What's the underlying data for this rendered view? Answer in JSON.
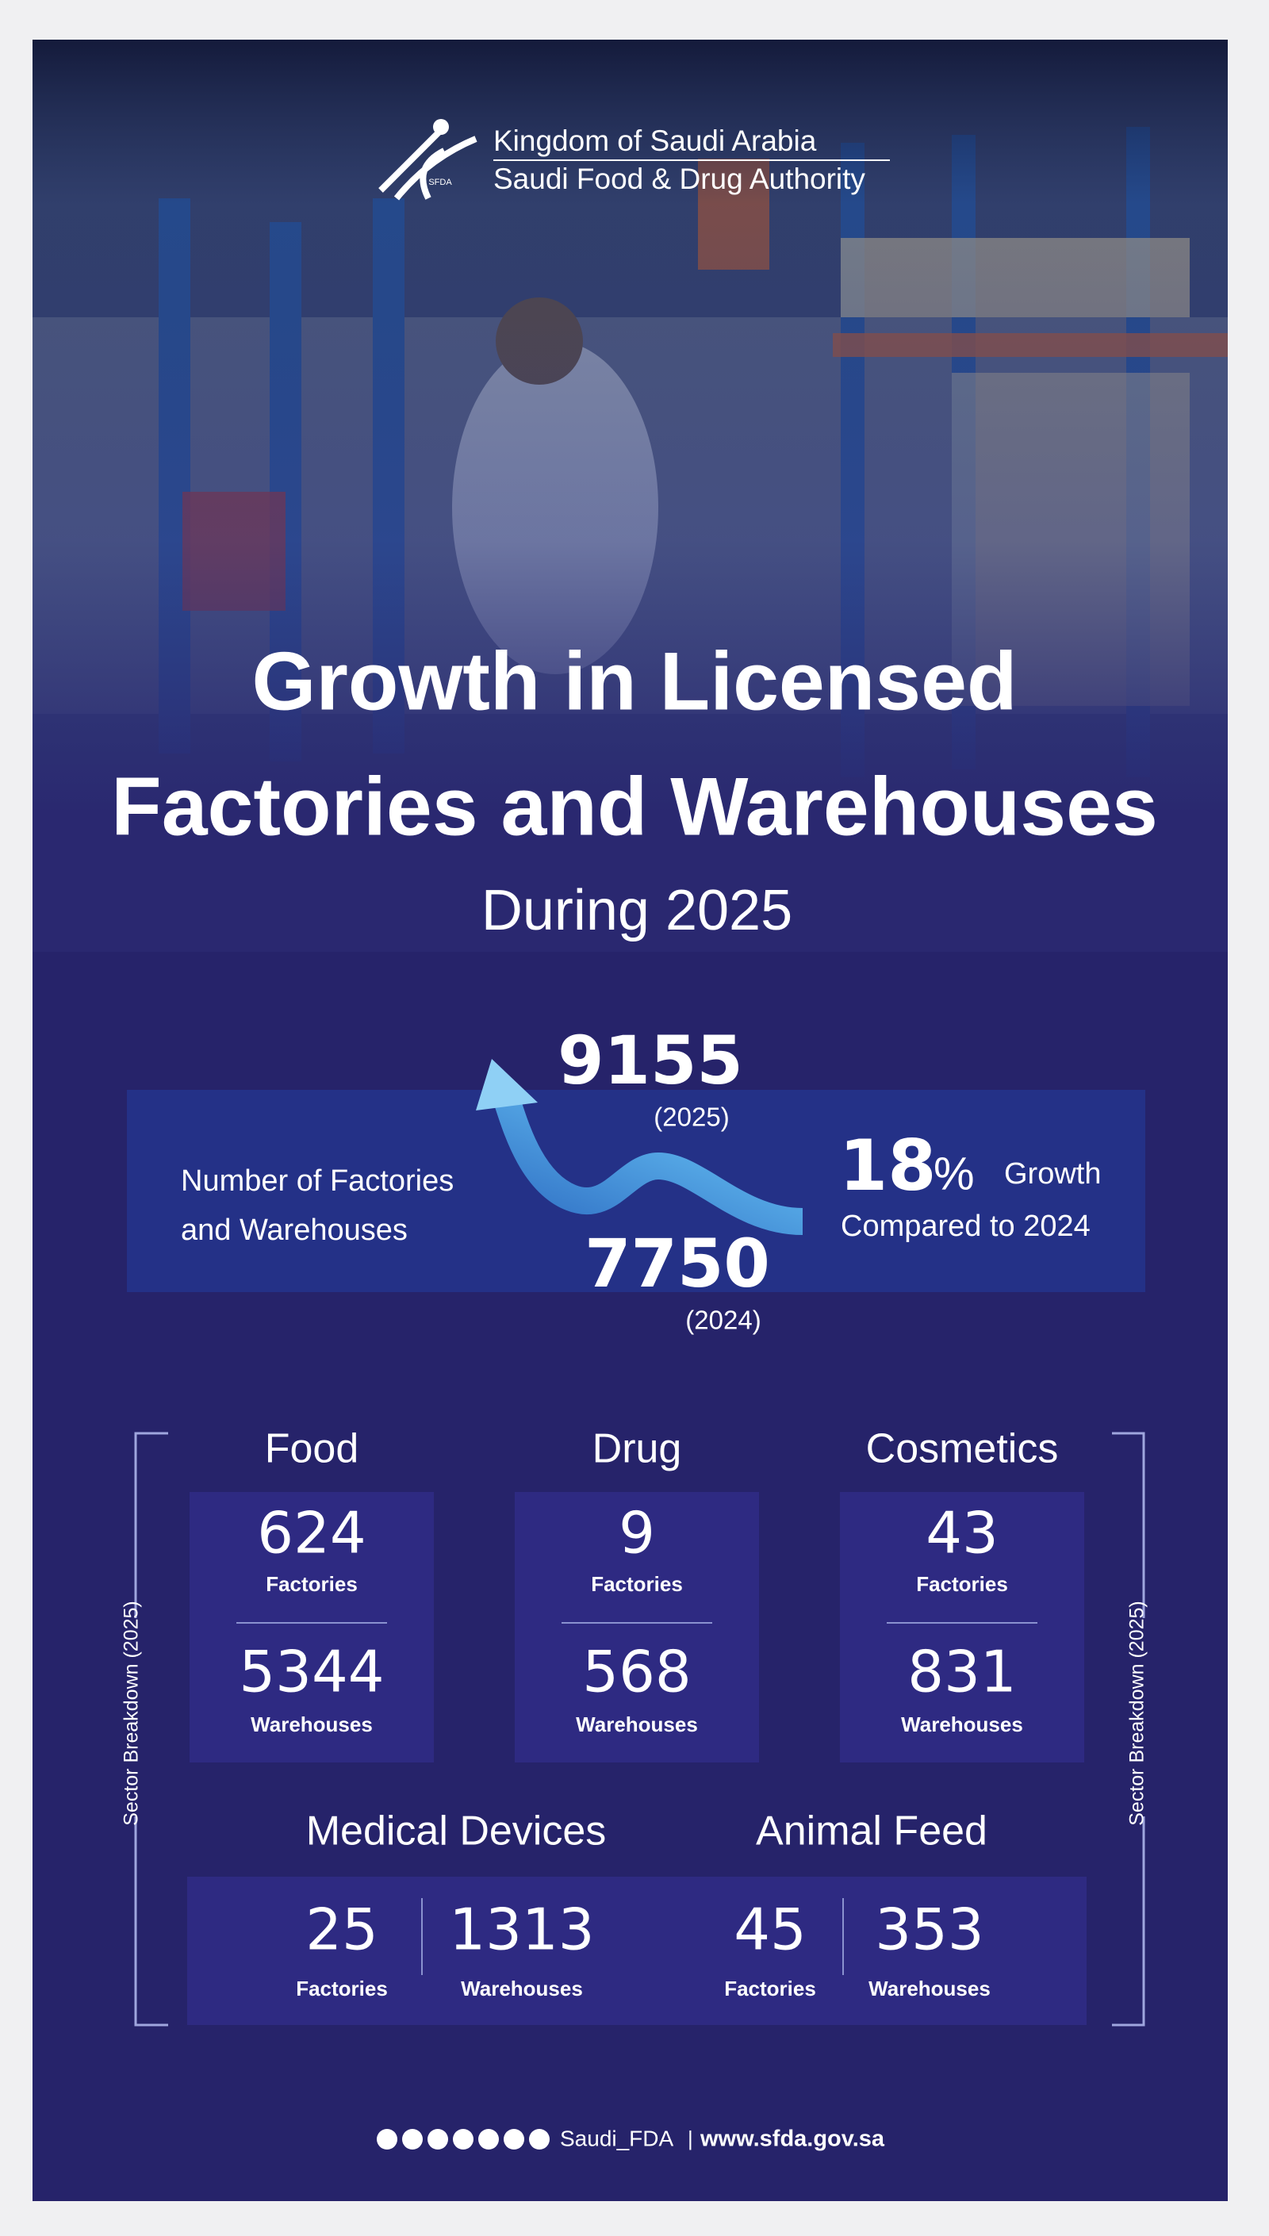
{
  "header": {
    "logo_text": "SFDA",
    "org_line_1": "Kingdom of Saudi Arabia",
    "org_line_2": "Saudi Food & Drug Authority"
  },
  "title": {
    "line_1": "Growth in Licensed",
    "line_2": "Factories and Warehouses",
    "subtitle": "During 2025"
  },
  "summary": {
    "label_line_1": "Number of Factories",
    "label_line_2": "and Warehouses",
    "current": {
      "value": 9155,
      "year": "(2025)"
    },
    "previous": {
      "value": 7750,
      "year": "(2024)"
    },
    "growth": {
      "value": 18,
      "unit": "%",
      "label": "Growth",
      "comparison": "Compared to 2024"
    }
  },
  "sectors": {
    "side_label": "Sector Breakdown (2025)",
    "factories_label": "Factories",
    "warehouses_label": "Warehouses",
    "items": [
      {
        "name": "Food",
        "factories": 624,
        "warehouses": 5344
      },
      {
        "name": "Drug",
        "factories": 9,
        "warehouses": 568
      },
      {
        "name": "Cosmetics",
        "factories": 43,
        "warehouses": 831
      },
      {
        "name": "Medical Devices",
        "factories": 25,
        "warehouses": 1313
      },
      {
        "name": "Animal Feed",
        "factories": 45,
        "warehouses": 353
      }
    ]
  },
  "footer": {
    "handle": "Saudi_FDA",
    "separator": "|",
    "website": "www.sfda.gov.sa"
  }
}
